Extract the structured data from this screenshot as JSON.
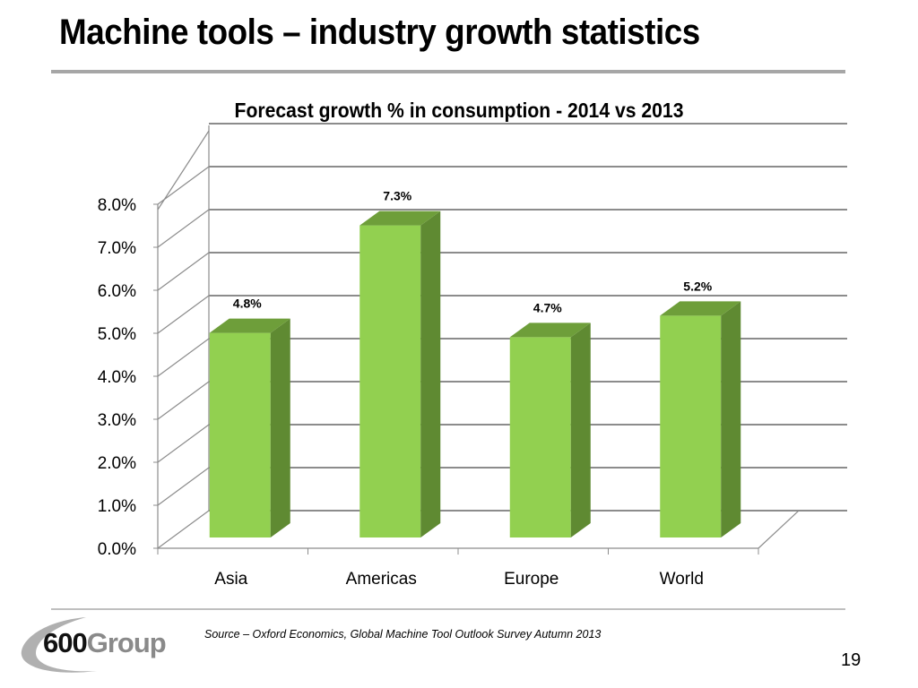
{
  "slide": {
    "title": "Machine tools – industry growth statistics",
    "source": "Source – Oxford Economics, Global Machine Tool Outlook Survey Autumn 2013",
    "page_number": "19",
    "logo": {
      "number": "600",
      "word": "Group"
    }
  },
  "colors": {
    "bar_front": "#92d050",
    "bar_side": "#5f8a32",
    "bar_top": "#6e9e3a",
    "grid": "#8c8c8c"
  },
  "chart_data": {
    "type": "bar",
    "style": "3d-column",
    "title": "Forecast growth % in consumption -  2014 vs 2013",
    "xlabel": "",
    "ylabel": "",
    "categories": [
      "Asia",
      "Americas",
      "Europe",
      "World"
    ],
    "values": [
      4.8,
      7.3,
      4.7,
      5.2
    ],
    "data_labels": [
      "4.8%",
      "7.3%",
      "4.7%",
      "5.2%"
    ],
    "ylim": [
      0,
      8
    ],
    "yticks": [
      0,
      1,
      2,
      3,
      4,
      5,
      6,
      7,
      8
    ],
    "ytick_labels": [
      "0.0%",
      "1.0%",
      "2.0%",
      "3.0%",
      "4.0%",
      "5.0%",
      "6.0%",
      "7.0%",
      "8.0%"
    ],
    "grid": true,
    "legend": "none"
  }
}
